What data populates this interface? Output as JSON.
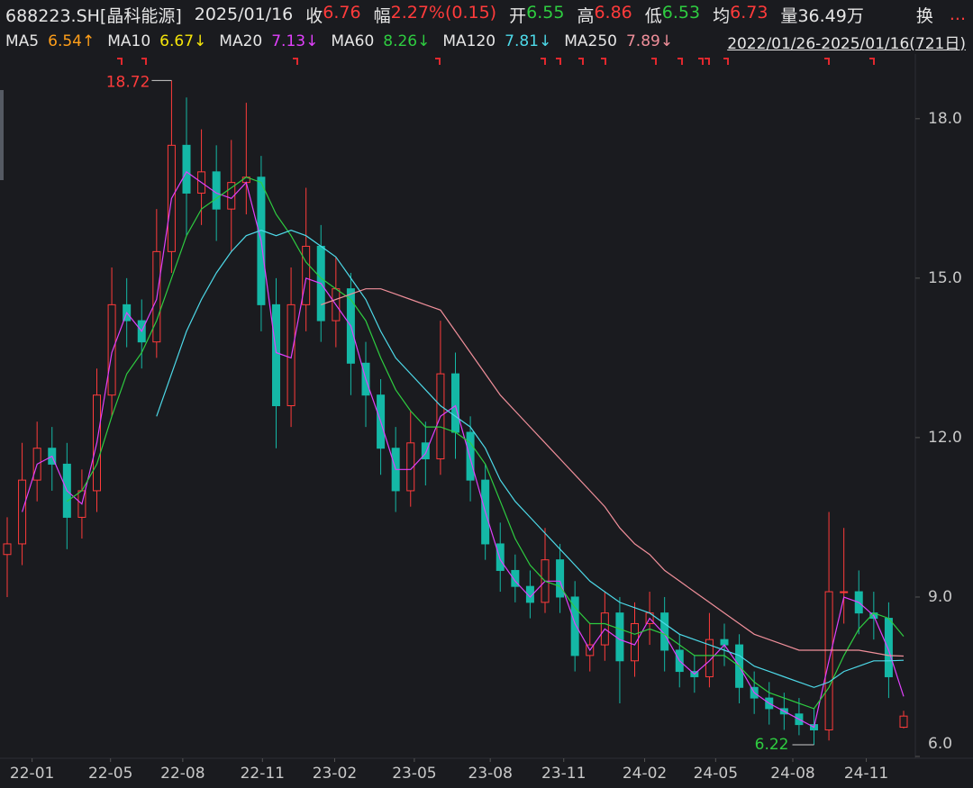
{
  "header": {
    "symbol": "688223.SH[晶科能源]",
    "date": "2025/01/16",
    "quotes": [
      {
        "label": "收",
        "value": "6.76",
        "color": "#ff3b3b"
      },
      {
        "label": "幅",
        "value": "2.27%(0.15)",
        "color": "#ff3b3b"
      },
      {
        "label": "开",
        "value": "6.55",
        "color": "#2ecc40"
      },
      {
        "label": "高",
        "value": "6.86",
        "color": "#ff3b3b"
      },
      {
        "label": "低",
        "value": "6.53",
        "color": "#2ecc40"
      },
      {
        "label": "均",
        "value": "6.73",
        "color": "#ff3b3b"
      },
      {
        "label": "量",
        "value": "36.49万",
        "color": "#e6e6e6"
      }
    ],
    "extra": "换",
    "more": "..."
  },
  "chart_data": {
    "type": "candlestick",
    "date_range": "2022/01/26-2025/01/16(721日)",
    "up_color": "#ff3b3b",
    "down_color": "#14b8a6",
    "max_color": "#ff3b3b",
    "min_color": "#2ecc40",
    "xlim": [
      0,
      720
    ],
    "xticks": [
      {
        "value": 20,
        "label": "22-01"
      },
      {
        "value": 83,
        "label": "22-05"
      },
      {
        "value": 141,
        "label": "22-08"
      },
      {
        "value": 205,
        "label": "22-11"
      },
      {
        "value": 263,
        "label": "23-02"
      },
      {
        "value": 327,
        "label": "23-05"
      },
      {
        "value": 388,
        "label": "23-08"
      },
      {
        "value": 447,
        "label": "23-11"
      },
      {
        "value": 512,
        "label": "24-02"
      },
      {
        "value": 569,
        "label": "24-05"
      },
      {
        "value": 631,
        "label": "24-08"
      },
      {
        "value": 690,
        "label": "24-11"
      }
    ],
    "ylim": [
      6,
      19.2
    ],
    "yticks": [
      {
        "value": 6,
        "label": "6.0"
      },
      {
        "value": 9,
        "label": "9.0"
      },
      {
        "value": 12,
        "label": "12.0"
      },
      {
        "value": 15,
        "label": "15.0"
      },
      {
        "value": 18,
        "label": "18.0"
      }
    ],
    "grid": false,
    "x": [
      0,
      12,
      24,
      36,
      48,
      60,
      72,
      84,
      96,
      108,
      120,
      132,
      144,
      156,
      168,
      180,
      192,
      204,
      216,
      228,
      240,
      252,
      264,
      276,
      288,
      300,
      312,
      324,
      336,
      348,
      360,
      372,
      384,
      396,
      408,
      420,
      432,
      444,
      456,
      468,
      480,
      492,
      504,
      516,
      528,
      540,
      552,
      564,
      576,
      588,
      600,
      612,
      624,
      636,
      648,
      660,
      672,
      684,
      696,
      708,
      720
    ],
    "ohlc": {
      "open": [
        9.8,
        10.0,
        11.2,
        11.8,
        11.5,
        10.5,
        11.0,
        12.8,
        14.5,
        14.2,
        13.8,
        15.5,
        17.5,
        16.6,
        17.0,
        16.3,
        16.8,
        16.9,
        14.5,
        12.6,
        14.5,
        15.6,
        14.2,
        14.8,
        13.4,
        12.8,
        11.8,
        11.0,
        11.9,
        11.6,
        13.2,
        12.1,
        11.2,
        10.0,
        9.5,
        9.2,
        8.9,
        9.7,
        9.0,
        7.9,
        8.1,
        8.7,
        7.8,
        8.5,
        8.7,
        8.0,
        7.6,
        7.5,
        8.2,
        8.1,
        7.3,
        7.1,
        6.9,
        6.8,
        6.6,
        6.5,
        9.1,
        9.1,
        8.7,
        8.6,
        6.55
      ],
      "high": [
        10.5,
        11.9,
        12.3,
        12.2,
        11.9,
        11.4,
        13.3,
        15.2,
        15.0,
        14.6,
        16.3,
        18.72,
        18.4,
        17.8,
        17.5,
        17.6,
        18.3,
        17.3,
        15.0,
        15.2,
        16.7,
        16.0,
        15.4,
        15.1,
        13.8,
        13.1,
        12.2,
        12.5,
        12.3,
        14.2,
        13.6,
        12.4,
        11.5,
        10.4,
        9.8,
        9.5,
        10.3,
        10.0,
        9.3,
        8.5,
        9.1,
        9.0,
        8.9,
        9.1,
        9.0,
        8.3,
        7.9,
        8.7,
        8.5,
        8.3,
        7.6,
        7.4,
        7.2,
        7.1,
        6.9,
        10.6,
        10.3,
        9.5,
        9.1,
        8.9,
        6.86
      ],
      "low": [
        9.0,
        9.6,
        10.8,
        11.0,
        9.9,
        10.1,
        10.6,
        12.4,
        13.7,
        13.3,
        13.5,
        15.1,
        15.8,
        16.0,
        15.7,
        15.5,
        16.2,
        14.0,
        11.8,
        12.2,
        14.0,
        13.8,
        13.7,
        12.8,
        12.2,
        11.3,
        10.6,
        10.7,
        11.1,
        11.3,
        11.6,
        10.8,
        9.7,
        9.1,
        8.9,
        8.6,
        8.7,
        8.7,
        7.6,
        7.6,
        7.8,
        7.0,
        7.5,
        8.1,
        7.6,
        7.3,
        7.2,
        7.3,
        7.7,
        7.0,
        6.8,
        6.6,
        6.5,
        6.4,
        6.22,
        6.3,
        8.5,
        8.3,
        8.2,
        7.1,
        6.53
      ],
      "close": [
        10.0,
        11.2,
        11.8,
        11.5,
        10.5,
        11.0,
        12.8,
        14.5,
        14.2,
        13.8,
        15.5,
        17.5,
        16.6,
        17.0,
        16.3,
        16.8,
        16.9,
        14.5,
        12.6,
        14.5,
        15.6,
        14.2,
        14.8,
        13.4,
        12.8,
        11.8,
        11.0,
        11.9,
        11.6,
        13.2,
        12.1,
        11.2,
        10.0,
        9.5,
        9.2,
        8.9,
        9.7,
        9.0,
        7.9,
        8.1,
        8.7,
        7.8,
        8.5,
        8.7,
        8.0,
        7.6,
        7.5,
        8.2,
        8.1,
        7.3,
        7.1,
        6.9,
        6.8,
        6.6,
        6.5,
        9.1,
        9.1,
        8.7,
        8.6,
        7.5,
        6.76
      ]
    },
    "series": [
      {
        "name": "MA5",
        "label": "6.54↑",
        "color": "#ff9f1a"
      },
      {
        "name": "MA10",
        "label": "6.67↓",
        "color": "#f5e50a"
      },
      {
        "name": "MA20",
        "label": "7.13↓",
        "color": "#e040fb",
        "values": [
          null,
          10.6,
          11.5,
          11.65,
          11.0,
          10.75,
          11.9,
          13.6,
          14.35,
          14.0,
          14.6,
          16.5,
          17.0,
          16.8,
          16.6,
          16.5,
          16.8,
          15.7,
          13.6,
          13.5,
          15.0,
          14.9,
          14.5,
          14.1,
          13.1,
          12.3,
          11.4,
          11.4,
          11.7,
          12.4,
          12.6,
          11.6,
          10.6,
          9.7,
          9.3,
          9.0,
          9.3,
          9.3,
          8.5,
          8.0,
          8.4,
          8.2,
          8.1,
          8.6,
          8.3,
          7.8,
          7.55,
          7.8,
          8.1,
          7.7,
          7.2,
          7.0,
          6.85,
          6.7,
          6.55,
          7.8,
          9.0,
          8.9,
          8.65,
          8.0,
          7.13
        ]
      },
      {
        "name": "MA60",
        "label": "8.26↓",
        "color": "#2ecc40",
        "values": [
          null,
          null,
          null,
          null,
          10.8,
          11.0,
          11.5,
          12.4,
          13.2,
          13.6,
          14.2,
          15.0,
          15.8,
          16.3,
          16.5,
          16.7,
          16.9,
          16.8,
          16.2,
          15.8,
          15.3,
          15.0,
          14.8,
          14.6,
          14.2,
          13.5,
          12.9,
          12.5,
          12.2,
          12.2,
          12.1,
          11.9,
          11.5,
          10.8,
          10.1,
          9.6,
          9.3,
          9.2,
          8.8,
          8.5,
          8.5,
          8.4,
          8.3,
          8.4,
          8.3,
          8.1,
          7.9,
          7.9,
          7.9,
          7.7,
          7.4,
          7.2,
          7.1,
          7.0,
          6.9,
          7.3,
          7.9,
          8.4,
          8.7,
          8.6,
          8.26
        ]
      },
      {
        "name": "MA120",
        "label": "7.81↓",
        "color": "#4dd9e8",
        "values": [
          null,
          null,
          null,
          null,
          null,
          null,
          null,
          null,
          null,
          null,
          12.4,
          13.2,
          14.0,
          14.6,
          15.1,
          15.5,
          15.8,
          15.9,
          15.8,
          15.9,
          15.8,
          15.6,
          15.4,
          15.0,
          14.6,
          14.0,
          13.5,
          13.2,
          12.9,
          12.6,
          12.4,
          12.2,
          11.8,
          11.2,
          10.8,
          10.5,
          10.2,
          9.9,
          9.6,
          9.3,
          9.1,
          8.9,
          8.8,
          8.7,
          8.5,
          8.3,
          8.2,
          8.1,
          8.0,
          7.9,
          7.7,
          7.6,
          7.5,
          7.4,
          7.3,
          7.4,
          7.6,
          7.7,
          7.8,
          7.8,
          7.81
        ]
      },
      {
        "name": "MA250",
        "label": "7.89↓",
        "color": "#f08f9a",
        "values": [
          null,
          null,
          null,
          null,
          null,
          null,
          null,
          null,
          null,
          null,
          null,
          null,
          null,
          null,
          null,
          null,
          null,
          null,
          null,
          null,
          null,
          14.5,
          14.6,
          14.7,
          14.8,
          14.8,
          14.7,
          14.6,
          14.5,
          14.4,
          14.0,
          13.6,
          13.2,
          12.8,
          12.5,
          12.2,
          11.9,
          11.6,
          11.3,
          11.0,
          10.7,
          10.3,
          10.0,
          9.8,
          9.5,
          9.3,
          9.1,
          8.9,
          8.7,
          8.5,
          8.3,
          8.2,
          8.1,
          8.0,
          8.0,
          8.0,
          8.0,
          8.0,
          7.95,
          7.9,
          7.89
        ]
      }
    ]
  }
}
